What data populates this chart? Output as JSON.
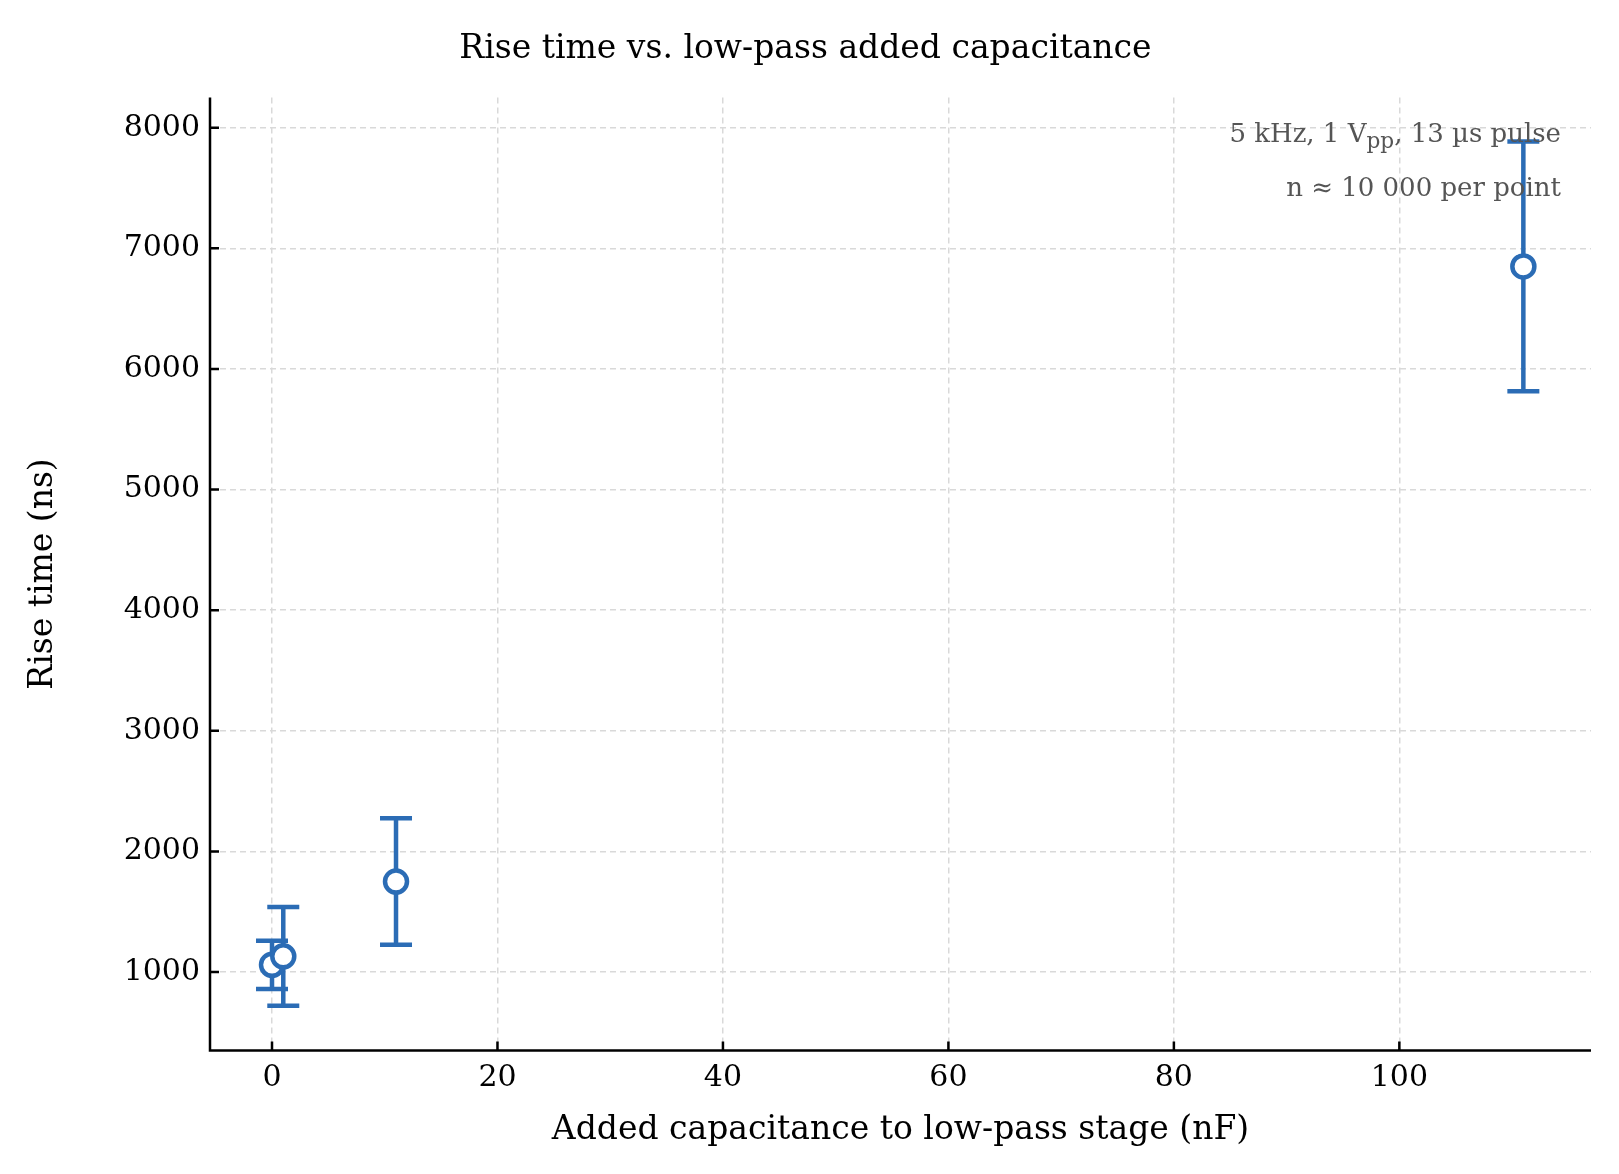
{
  "chart_data": {
    "type": "scatter",
    "title": "Rise time vs. low-pass added capacitance",
    "xlabel": "Added capacitance to low-pass stage (nF)",
    "ylabel": "Rise time (ns)",
    "x": [
      0,
      1,
      11,
      111
    ],
    "series": [
      {
        "color": "#2b6cb5",
        "values": [
          1060,
          1130,
          1750,
          6850
        ],
        "errors": [
          200,
          410,
          525,
          1035
        ]
      }
    ],
    "marker": "circle",
    "xlim": [
      -5.5,
      117
    ],
    "xticks": [
      0,
      20,
      40,
      60,
      80,
      100
    ],
    "ylim": [
      350,
      8250
    ],
    "yticks": [
      1000,
      2000,
      3000,
      4000,
      5000,
      6000,
      7000,
      8000
    ],
    "grid": true,
    "legend": false,
    "annotations": [
      "5 kHz, 1 V$_{pp}$, 13 µs pulse",
      "n ≈ 10 000 per point"
    ]
  }
}
